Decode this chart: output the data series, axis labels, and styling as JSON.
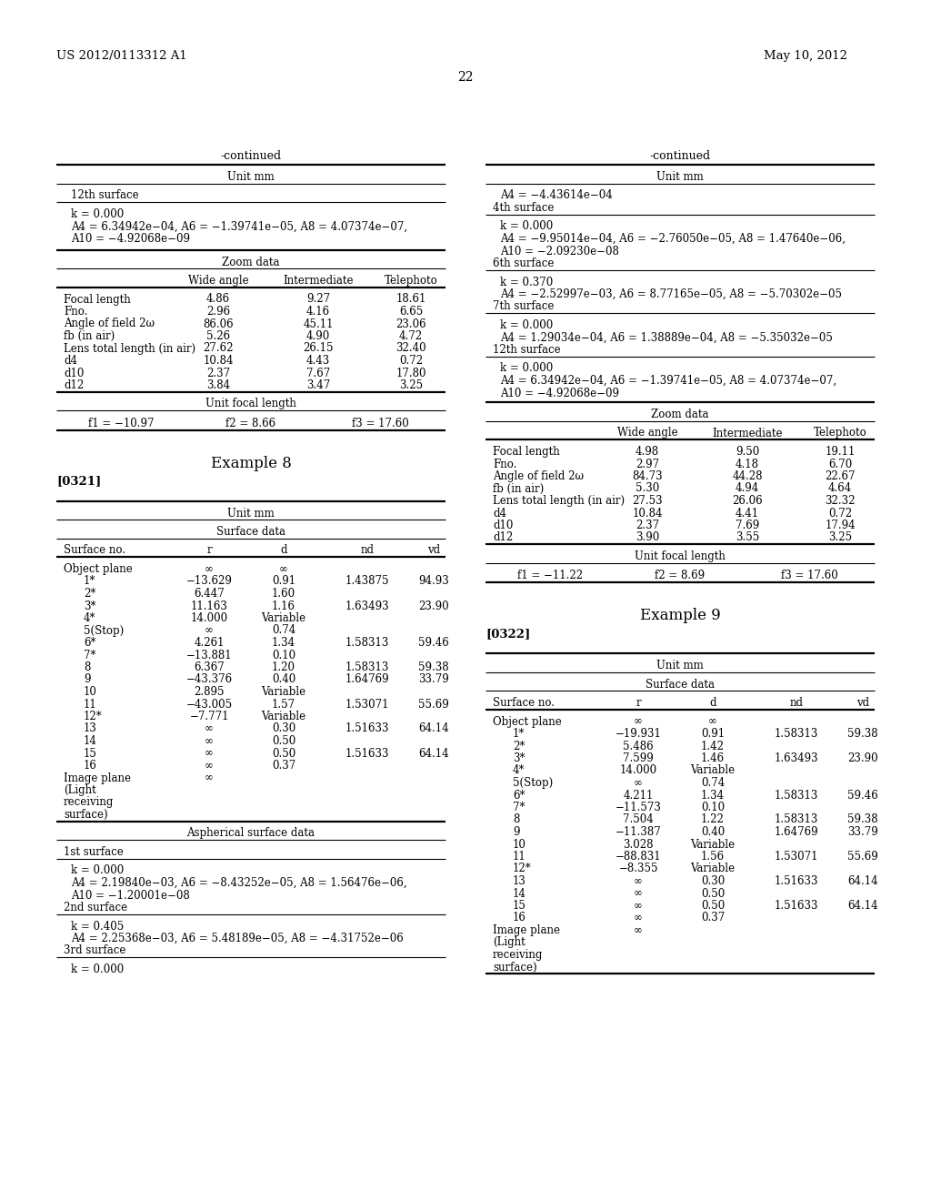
{
  "page_number": "22",
  "patent_left": "US 2012/0113312 A1",
  "patent_right": "May 10, 2012",
  "background_color": "#ffffff",
  "text_color": "#000000",
  "left_column": {
    "continued_title": "-continued",
    "unit_label": "Unit mm",
    "aspherical_section_12th": {
      "header": "12th surface",
      "lines": [
        "k = 0.000",
        "A4 = 6.34942e−04, A6 = −1.39741e−05, A8 = 4.07374e−07,",
        "A10 = −4.92068e−09"
      ]
    },
    "zoom_data": {
      "title": "Zoom data",
      "col_headers": [
        "",
        "Wide angle",
        "Intermediate",
        "Telephoto"
      ],
      "rows": [
        [
          "Focal length",
          "4.86",
          "9.27",
          "18.61"
        ],
        [
          "Fno.",
          "2.96",
          "4.16",
          "6.65"
        ],
        [
          "Angle of field 2ω",
          "86.06",
          "45.11",
          "23.06"
        ],
        [
          "fb (in air)",
          "5.26",
          "4.90",
          "4.72"
        ],
        [
          "Lens total length (in air)",
          "27.62",
          "26.15",
          "32.40"
        ],
        [
          "d4",
          "10.84",
          "4.43",
          "0.72"
        ],
        [
          "d10",
          "2.37",
          "7.67",
          "17.80"
        ],
        [
          "d12",
          "3.84",
          "3.47",
          "3.25"
        ]
      ]
    },
    "unit_focal": {
      "title": "Unit focal length",
      "f1": "f1 = −10.97",
      "f2": "f2 = 8.66",
      "f3": "f3 = 17.60"
    },
    "example_title": "Example 8",
    "para_num": "[0321]",
    "unit_label2": "Unit mm",
    "surface_data": {
      "title": "Surface data",
      "col_headers": [
        "Surface no.",
        "r",
        "d",
        "nd",
        "vd"
      ],
      "rows": [
        [
          "Object plane",
          "∞",
          "∞",
          "",
          ""
        ],
        [
          "1*",
          "−13.629",
          "0.91",
          "1.43875",
          "94.93"
        ],
        [
          "2*",
          "6.447",
          "1.60",
          "",
          ""
        ],
        [
          "3*",
          "11.163",
          "1.16",
          "1.63493",
          "23.90"
        ],
        [
          "4*",
          "14.000",
          "Variable",
          "",
          ""
        ],
        [
          "5(Stop)",
          "∞",
          "0.74",
          "",
          ""
        ],
        [
          "6*",
          "4.261",
          "1.34",
          "1.58313",
          "59.46"
        ],
        [
          "7*",
          "−13.881",
          "0.10",
          "",
          ""
        ],
        [
          "8",
          "6.367",
          "1.20",
          "1.58313",
          "59.38"
        ],
        [
          "9",
          "−43.376",
          "0.40",
          "1.64769",
          "33.79"
        ],
        [
          "10",
          "2.895",
          "Variable",
          "",
          ""
        ],
        [
          "11",
          "−43.005",
          "1.57",
          "1.53071",
          "55.69"
        ],
        [
          "12*",
          "−7.771",
          "Variable",
          "",
          ""
        ],
        [
          "13",
          "∞",
          "0.30",
          "1.51633",
          "64.14"
        ],
        [
          "14",
          "∞",
          "0.50",
          "",
          ""
        ],
        [
          "15",
          "∞",
          "0.50",
          "1.51633",
          "64.14"
        ],
        [
          "16",
          "∞",
          "0.37",
          "",
          ""
        ],
        [
          "Image plane",
          "∞",
          "",
          "",
          ""
        ],
        [
          "(Light",
          "",
          "",
          "",
          ""
        ],
        [
          "receiving",
          "",
          "",
          "",
          ""
        ],
        [
          "surface)",
          "",
          "",
          "",
          ""
        ]
      ]
    },
    "aspherical_data": {
      "title": "Aspherical surface data",
      "sections": [
        {
          "header": "1st surface",
          "lines": [
            "k = 0.000",
            "A4 = 2.19840e−03, A6 = −8.43252e−05, A8 = 1.56476e−06,",
            "A10 = −1.20001e−08"
          ]
        },
        {
          "header": "2nd surface",
          "lines": [
            "k = 0.405",
            "A4 = 2.25368e−03, A6 = 5.48189e−05, A8 = −4.31752e−06"
          ]
        },
        {
          "header": "3rd surface",
          "lines": [
            "k = 0.000"
          ]
        }
      ]
    }
  },
  "right_column": {
    "continued_title": "-continued",
    "unit_label": "Unit mm",
    "aspherical_sections_right": [
      {
        "lines": [
          "A4 = −4.43614e−04"
        ],
        "sub": "4th surface"
      },
      {
        "lines": [
          "k = 0.000",
          "A4 = −9.95014e−04, A6 = −2.76050e−05, A8 = 1.47640e−06,",
          "A10 = −2.09230e−08"
        ],
        "sub": "6th surface"
      },
      {
        "lines": [
          "k = 0.370",
          "A4 = −2.52997e−03, A6 = 8.77165e−05, A8 = −5.70302e−05"
        ],
        "sub": "7th surface"
      },
      {
        "lines": [
          "k = 0.000",
          "A4 = 1.29034e−04, A6 = 1.38889e−04, A8 = −5.35032e−05"
        ],
        "sub": "12th surface"
      },
      {
        "lines": [
          "k = 0.000",
          "A4 = 6.34942e−04, A6 = −1.39741e−05, A8 = 4.07374e−07,",
          "A10 = −4.92068e−09"
        ],
        "sub": null
      }
    ],
    "zoom_data": {
      "title": "Zoom data",
      "col_headers": [
        "",
        "Wide angle",
        "Intermediate",
        "Telephoto"
      ],
      "rows": [
        [
          "Focal length",
          "4.98",
          "9.50",
          "19.11"
        ],
        [
          "Fno.",
          "2.97",
          "4.18",
          "6.70"
        ],
        [
          "Angle of field 2ω",
          "84.73",
          "44.28",
          "22.67"
        ],
        [
          "fb (in air)",
          "5.30",
          "4.94",
          "4.64"
        ],
        [
          "Lens total length (in air)",
          "27.53",
          "26.06",
          "32.32"
        ],
        [
          "d4",
          "10.84",
          "4.41",
          "0.72"
        ],
        [
          "d10",
          "2.37",
          "7.69",
          "17.94"
        ],
        [
          "d12",
          "3.90",
          "3.55",
          "3.25"
        ]
      ]
    },
    "unit_focal": {
      "title": "Unit focal length",
      "f1": "f1 = −11.22",
      "f2": "f2 = 8.69",
      "f3": "f3 = 17.60"
    },
    "example_title": "Example 9",
    "para_num": "[0322]",
    "unit_label2": "Unit mm",
    "surface_data": {
      "title": "Surface data",
      "col_headers": [
        "Surface no.",
        "r",
        "d",
        "nd",
        "vd"
      ],
      "rows": [
        [
          "Object plane",
          "∞",
          "∞",
          "",
          ""
        ],
        [
          "1*",
          "−19.931",
          "0.91",
          "1.58313",
          "59.38"
        ],
        [
          "2*",
          "5.486",
          "1.42",
          "",
          ""
        ],
        [
          "3*",
          "7.599",
          "1.46",
          "1.63493",
          "23.90"
        ],
        [
          "4*",
          "14.000",
          "Variable",
          "",
          ""
        ],
        [
          "5(Stop)",
          "∞",
          "0.74",
          "",
          ""
        ],
        [
          "6*",
          "4.211",
          "1.34",
          "1.58313",
          "59.46"
        ],
        [
          "7*",
          "−11.573",
          "0.10",
          "",
          ""
        ],
        [
          "8",
          "7.504",
          "1.22",
          "1.58313",
          "59.38"
        ],
        [
          "9",
          "−11.387",
          "0.40",
          "1.64769",
          "33.79"
        ],
        [
          "10",
          "3.028",
          "Variable",
          "",
          ""
        ],
        [
          "11",
          "−88.831",
          "1.56",
          "1.53071",
          "55.69"
        ],
        [
          "12*",
          "−8.355",
          "Variable",
          "",
          ""
        ],
        [
          "13",
          "∞",
          "0.30",
          "1.51633",
          "64.14"
        ],
        [
          "14",
          "∞",
          "0.50",
          "",
          ""
        ],
        [
          "15",
          "∞",
          "0.50",
          "1.51633",
          "64.14"
        ],
        [
          "16",
          "∞",
          "0.37",
          "",
          ""
        ],
        [
          "Image plane",
          "∞",
          "",
          "",
          ""
        ],
        [
          "(Light",
          "",
          "",
          "",
          ""
        ],
        [
          "receiving",
          "",
          "",
          "",
          ""
        ],
        [
          "surface)",
          "",
          "",
          "",
          ""
        ]
      ]
    }
  }
}
